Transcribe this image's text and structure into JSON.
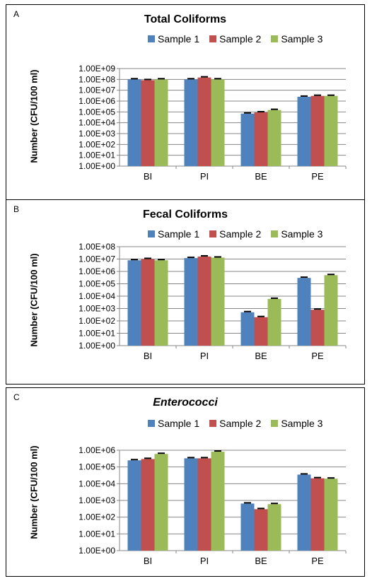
{
  "colors": {
    "sample1": "#4f81bd",
    "sample2": "#c0504d",
    "sample3": "#9bbb59"
  },
  "chart_data": [
    {
      "panel": "A",
      "type": "bar",
      "title": "Total Coliforms",
      "italic_title": false,
      "ylabel": "Number  (CFU/100  ml)",
      "y_scale": "log",
      "ylim": [
        1,
        1000000000
      ],
      "y_ticks": [
        "1.00E+00",
        "1.00E+01",
        "1.00E+02",
        "1.00E+03",
        "1.00E+04",
        "1.00E+05",
        "1.00E+06",
        "1.00E+07",
        "1.00E+08",
        "1.00E+09"
      ],
      "categories": [
        "BI",
        "PI",
        "BE",
        "PE"
      ],
      "legend": "top",
      "grid": true,
      "series": [
        {
          "name": "Sample 1",
          "values": [
            100000000,
            100000000,
            70000,
            2500000
          ]
        },
        {
          "name": "Sample 2",
          "values": [
            85000000,
            150000000,
            90000,
            3000000
          ]
        },
        {
          "name": "Sample 3",
          "values": [
            100000000,
            100000000,
            150000,
            3000000
          ]
        }
      ]
    },
    {
      "panel": "B",
      "type": "bar",
      "title": "Fecal Coliforms",
      "italic_title": false,
      "ylabel": "Number  (CFU/100  ml)",
      "y_scale": "log",
      "ylim": [
        1,
        100000000
      ],
      "y_ticks": [
        "1.00E+00",
        "1.00E+01",
        "1.00E+02",
        "1.00E+03",
        "1.00E+04",
        "1.00E+05",
        "1.00E+06",
        "1.00E+07",
        "1.00E+08"
      ],
      "categories": [
        "BI",
        "PI",
        "BE",
        "PE"
      ],
      "legend": "top",
      "grid": true,
      "series": [
        {
          "name": "Sample 1",
          "values": [
            8000000,
            12000000,
            500,
            300000
          ]
        },
        {
          "name": "Sample 2",
          "values": [
            10000000,
            16000000,
            200,
            800
          ]
        },
        {
          "name": "Sample 3",
          "values": [
            8000000,
            13000000,
            6000,
            500000
          ]
        }
      ]
    },
    {
      "panel": "C",
      "type": "bar",
      "title": "Enterococci",
      "italic_title": true,
      "ylabel": "Number  (CFU/100  ml)",
      "y_scale": "log",
      "ylim": [
        1,
        1000000
      ],
      "y_ticks": [
        "1.00E+00",
        "1.00E+01",
        "1.00E+02",
        "1.00E+03",
        "1.00E+04",
        "1.00E+05",
        "1.00E+06"
      ],
      "categories": [
        "BI",
        "PI",
        "BE",
        "PE"
      ],
      "legend": "top",
      "grid": true,
      "series": [
        {
          "name": "Sample 1",
          "values": [
            250000,
            330000,
            650,
            35000
          ]
        },
        {
          "name": "Sample 2",
          "values": [
            300000,
            330000,
            300,
            21000
          ]
        },
        {
          "name": "Sample 3",
          "values": [
            600000,
            820000,
            600,
            20000
          ]
        }
      ]
    }
  ]
}
